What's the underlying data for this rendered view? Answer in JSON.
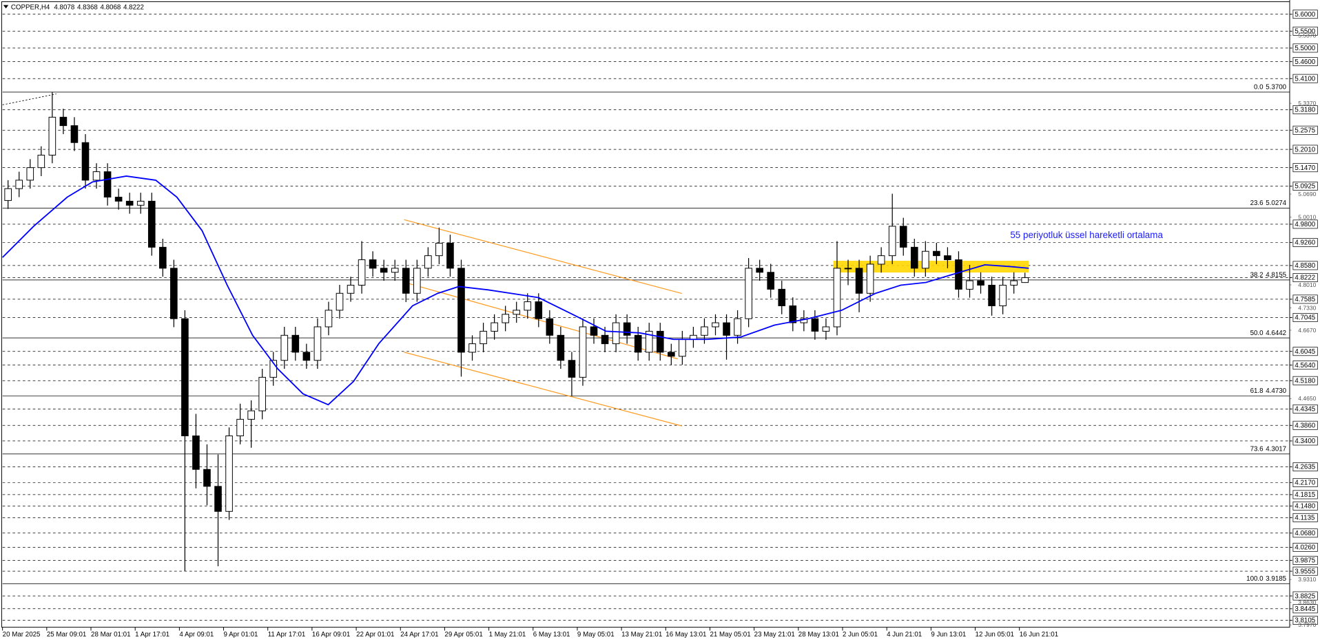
{
  "chart_data": {
    "type": "candlestick",
    "title": "COPPER,H4",
    "header_values": [
      4.8078,
      4.8368,
      4.8068,
      4.8222
    ],
    "ylim": [
      3.79,
      5.642
    ],
    "xlim": [
      0,
      116.3
    ],
    "grid": true,
    "bull_color": "#ffffff",
    "bear_color": "#000000",
    "yticks": [
      {
        "value": 5.6,
        "label": "5.6000"
      },
      {
        "value": 5.55,
        "label": "5.5500"
      },
      {
        "value": 5.5,
        "label": "5.5000"
      },
      {
        "value": 5.46,
        "label": "5.4600"
      },
      {
        "value": 5.41,
        "label": "5.4100"
      },
      {
        "value": 5.318,
        "label": "5.3180"
      },
      5.2575,
      {
        "value": 5.201,
        "label": "5.2010"
      },
      {
        "value": 5.147,
        "label": "5.1470"
      },
      5.0925,
      {
        "value": 4.98,
        "label": "4.9800"
      },
      {
        "value": 4.926,
        "label": "4.9260"
      },
      {
        "value": 4.858,
        "label": "4.8580"
      },
      4.8222,
      4.7585,
      4.7045,
      4.6045,
      {
        "value": 4.564,
        "label": "4.5640"
      },
      {
        "value": 4.518,
        "label": "4.5180"
      },
      4.4345,
      {
        "value": 4.386,
        "label": "4.3860"
      },
      {
        "value": 4.34,
        "label": "4.3400"
      },
      4.2635,
      {
        "value": 4.217,
        "label": "4.2170"
      },
      4.1815,
      {
        "value": 4.148,
        "label": "4.1480"
      },
      4.1135,
      {
        "value": 4.068,
        "label": "4.0680"
      },
      {
        "value": 4.026,
        "label": "4.0260"
      },
      3.9875,
      3.9555,
      3.8825,
      3.8445,
      3.8105
    ],
    "yticks_minor": [
      {
        "value": 5.537,
        "label": "5.5370"
      },
      {
        "value": 5.337,
        "label": "5.3370"
      },
      {
        "value": 5.069,
        "label": "5.0690"
      },
      {
        "value": 5.001,
        "label": "5.0010"
      },
      {
        "value": 4.801,
        "label": "4.8010"
      },
      {
        "value": 4.733,
        "label": "4.7330"
      },
      {
        "value": 4.667,
        "label": "4.6670"
      },
      {
        "value": 4.465,
        "label": "4.4650"
      },
      {
        "value": 3.931,
        "label": "3.9310"
      },
      {
        "value": 3.863,
        "label": "3.8630"
      },
      {
        "value": 3.797,
        "label": "3.7970"
      }
    ],
    "xticks": [
      {
        "value": 0,
        "label": "20 Mar 2025"
      },
      {
        "value": 4,
        "label": "25 Mar 09:01"
      },
      {
        "value": 8,
        "label": "28 Mar 01:01"
      },
      {
        "value": 12,
        "label": "1 Apr 17:01"
      },
      {
        "value": 16,
        "label": "4 Apr 09:01"
      },
      {
        "value": 20,
        "label": "9 Apr 01:01"
      },
      {
        "value": 24,
        "label": "11 Apr 17:01"
      },
      {
        "value": 28,
        "label": "16 Apr 09:01"
      },
      {
        "value": 32,
        "label": "22 Apr 01:01"
      },
      {
        "value": 36,
        "label": "24 Apr 17:01"
      },
      {
        "value": 40,
        "label": "29 Apr 05:01"
      },
      {
        "value": 44,
        "label": "1 May 21:01"
      },
      {
        "value": 48,
        "label": "6 May 13:01"
      },
      {
        "value": 52,
        "label": "9 May 05:01"
      },
      {
        "value": 56,
        "label": "13 May 21:01"
      },
      {
        "value": 60,
        "label": "16 May 13:01"
      },
      {
        "value": 64,
        "label": "21 May 05:01"
      },
      {
        "value": 68,
        "label": "23 May 21:01"
      },
      {
        "value": 72,
        "label": "28 May 13:01"
      },
      {
        "value": 76,
        "label": "2 Jun 05:01"
      },
      {
        "value": 80,
        "label": "4 Jun 21:01"
      },
      {
        "value": 84,
        "label": "9 Jun 13:01"
      },
      {
        "value": 88,
        "label": "12 Jun 05:01"
      },
      {
        "value": 92,
        "label": "16 Jun 21:01"
      }
    ],
    "candles": [
      [
        5.05,
        5.11,
        5.025,
        5.085
      ],
      [
        5.085,
        5.135,
        5.06,
        5.11
      ],
      [
        5.11,
        5.172,
        5.085,
        5.147
      ],
      [
        5.147,
        5.21,
        5.122,
        5.184
      ],
      [
        5.184,
        5.37,
        5.16,
        5.296
      ],
      [
        5.296,
        5.321,
        5.246,
        5.271
      ],
      [
        5.271,
        5.296,
        5.196,
        5.221
      ],
      [
        5.221,
        5.246,
        5.085,
        5.11
      ],
      [
        5.11,
        5.16,
        5.085,
        5.135
      ],
      [
        5.135,
        5.16,
        5.035,
        5.06
      ],
      [
        5.06,
        5.085,
        5.023,
        5.048
      ],
      [
        5.048,
        5.073,
        5.011,
        5.036
      ],
      [
        5.036,
        5.073,
        5.011,
        5.048
      ],
      [
        5.048,
        5.073,
        4.887,
        4.912
      ],
      [
        4.912,
        4.937,
        4.825,
        4.85
      ],
      [
        4.85,
        4.875,
        4.676,
        4.701
      ],
      [
        4.701,
        4.726,
        3.955,
        4.355
      ],
      [
        4.355,
        4.42,
        4.2,
        4.256
      ],
      [
        4.256,
        4.33,
        4.15,
        4.206
      ],
      [
        4.206,
        4.3,
        3.97,
        4.132
      ],
      [
        4.132,
        4.38,
        4.107,
        4.355
      ],
      [
        4.355,
        4.45,
        4.33,
        4.404
      ],
      [
        4.404,
        4.46,
        4.32,
        4.429
      ],
      [
        4.429,
        4.553,
        4.404,
        4.528
      ],
      [
        4.528,
        4.603,
        4.503,
        4.578
      ],
      [
        4.578,
        4.677,
        4.553,
        4.652
      ],
      [
        4.652,
        4.677,
        4.577,
        4.602
      ],
      [
        4.602,
        4.627,
        4.553,
        4.578
      ],
      [
        4.578,
        4.702,
        4.553,
        4.677
      ],
      [
        4.677,
        4.751,
        4.652,
        4.726
      ],
      [
        4.726,
        4.801,
        4.701,
        4.776
      ],
      [
        4.776,
        4.825,
        4.751,
        4.8
      ],
      [
        4.8,
        4.93,
        4.775,
        4.875
      ],
      [
        4.875,
        4.9,
        4.825,
        4.85
      ],
      [
        4.85,
        4.875,
        4.813,
        4.838
      ],
      [
        4.838,
        4.875,
        4.813,
        4.85
      ],
      [
        4.85,
        4.875,
        4.75,
        4.776
      ],
      [
        4.776,
        4.875,
        4.751,
        4.85
      ],
      [
        4.85,
        4.912,
        4.825,
        4.887
      ],
      [
        4.887,
        4.97,
        4.862,
        4.924
      ],
      [
        4.924,
        4.949,
        4.825,
        4.85
      ],
      [
        4.85,
        4.875,
        4.53,
        4.602
      ],
      [
        4.602,
        4.652,
        4.577,
        4.627
      ],
      [
        4.627,
        4.689,
        4.602,
        4.664
      ],
      [
        4.664,
        4.714,
        4.639,
        4.689
      ],
      [
        4.689,
        4.739,
        4.664,
        4.714
      ],
      [
        4.714,
        4.751,
        4.689,
        4.726
      ],
      [
        4.726,
        4.776,
        4.701,
        4.751
      ],
      [
        4.751,
        4.776,
        4.676,
        4.701
      ],
      [
        4.701,
        4.726,
        4.627,
        4.652
      ],
      [
        4.652,
        4.677,
        4.553,
        4.578
      ],
      [
        4.578,
        4.603,
        4.473,
        4.528
      ],
      [
        4.528,
        4.702,
        4.503,
        4.677
      ],
      [
        4.677,
        4.702,
        4.627,
        4.652
      ],
      [
        4.652,
        4.677,
        4.602,
        4.627
      ],
      [
        4.627,
        4.714,
        4.602,
        4.689
      ],
      [
        4.689,
        4.714,
        4.627,
        4.652
      ],
      [
        4.652,
        4.677,
        4.577,
        4.602
      ],
      [
        4.602,
        4.689,
        4.577,
        4.664
      ],
      [
        4.664,
        4.689,
        4.577,
        4.602
      ],
      [
        4.602,
        4.627,
        4.565,
        4.59
      ],
      [
        4.59,
        4.665,
        4.565,
        4.64
      ],
      [
        4.64,
        4.677,
        4.615,
        4.652
      ],
      [
        4.652,
        4.702,
        4.627,
        4.677
      ],
      [
        4.677,
        4.714,
        4.652,
        4.689
      ],
      [
        4.689,
        4.714,
        4.58,
        4.652
      ],
      [
        4.652,
        4.726,
        4.627,
        4.701
      ],
      [
        4.701,
        4.88,
        4.676,
        4.85
      ],
      [
        4.85,
        4.875,
        4.813,
        4.838
      ],
      [
        4.838,
        4.863,
        4.763,
        4.788
      ],
      [
        4.788,
        4.813,
        4.714,
        4.739
      ],
      [
        4.739,
        4.764,
        4.664,
        4.689
      ],
      [
        4.689,
        4.726,
        4.664,
        4.701
      ],
      [
        4.701,
        4.726,
        4.639,
        4.664
      ],
      [
        4.664,
        4.702,
        4.639,
        4.677
      ],
      [
        4.677,
        4.93,
        4.652,
        4.85
      ],
      [
        4.85,
        4.875,
        4.8,
        4.85
      ],
      [
        4.85,
        4.875,
        4.72,
        4.776
      ],
      [
        4.776,
        4.887,
        4.751,
        4.862
      ],
      [
        4.862,
        4.912,
        4.837,
        4.887
      ],
      [
        4.887,
        5.07,
        4.862,
        4.974
      ],
      [
        4.974,
        4.999,
        4.887,
        4.912
      ],
      [
        4.912,
        4.937,
        4.825,
        4.85
      ],
      [
        4.85,
        4.93,
        4.825,
        4.9
      ],
      [
        4.9,
        4.925,
        4.862,
        4.887
      ],
      [
        4.887,
        4.912,
        4.85,
        4.875
      ],
      [
        4.875,
        4.9,
        4.763,
        4.788
      ],
      [
        4.788,
        4.86,
        4.763,
        4.813
      ],
      [
        4.813,
        4.838,
        4.775,
        4.8
      ],
      [
        4.8,
        4.825,
        4.71,
        4.739
      ],
      [
        4.739,
        4.825,
        4.714,
        4.8
      ],
      [
        4.8,
        4.838,
        4.775,
        4.813
      ],
      [
        4.8078,
        4.8368,
        4.8068,
        4.8222
      ]
    ],
    "ema": {
      "color": "#0000ff",
      "x": [
        0,
        2.82,
        5.86,
        8.15,
        11.2,
        13.86,
        15.77,
        18.05,
        20.33,
        22.62,
        24.9,
        27.19,
        29.47,
        31.76,
        34.04,
        37.09,
        39.37,
        41.28,
        43.94,
        46.99,
        48.51,
        51.56,
        54.6,
        57.65,
        60.7,
        63.75,
        66.79,
        69.84,
        72.89,
        75.93,
        78.98,
        81.26,
        83.55,
        86.6,
        88.88,
        91.17,
        92.85
      ],
      "values": [
        4.882,
        4.974,
        5.06,
        5.105,
        5.122,
        5.11,
        5.06,
        4.961,
        4.8,
        4.652,
        4.553,
        4.479,
        4.447,
        4.516,
        4.627,
        4.739,
        4.776,
        4.796,
        4.786,
        4.771,
        4.763,
        4.714,
        4.664,
        4.659,
        4.64,
        4.64,
        4.647,
        4.682,
        4.701,
        4.726,
        4.776,
        4.8,
        4.808,
        4.838,
        4.86,
        4.855,
        4.85
      ]
    },
    "annotation": "55 periyotluk üssel hareketli ortalama",
    "fibonacci": [
      {
        "level": {
          "value": 0,
          "label": "0.0"
        },
        "price": {
          "value": 5.37,
          "label": "5.3700"
        }
      },
      {
        "level": 23.6,
        "price": 5.0274
      },
      {
        "level": 38.2,
        "price": 4.8155
      },
      {
        "level": {
          "value": 50,
          "label": "50.0"
        },
        "price": 4.6442
      },
      {
        "level": 61.8,
        "price": {
          "value": 4.473,
          "label": "4.4730"
        }
      },
      {
        "level": 73.6,
        "price": 4.3017
      },
      {
        "level": {
          "value": 100,
          "label": "100.0"
        },
        "price": 3.9185
      }
    ]
  }
}
